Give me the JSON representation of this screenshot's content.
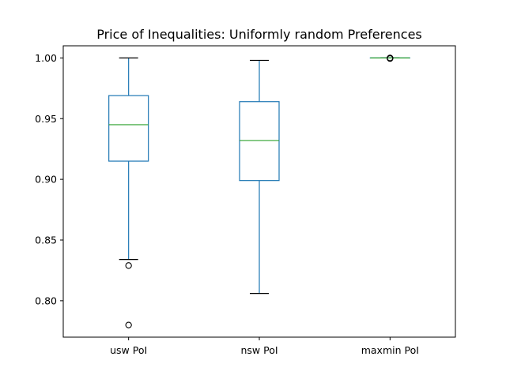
{
  "chart_data": {
    "type": "box",
    "title": "Price of Inequalities: Uniformly random Preferences",
    "xlabel": "",
    "ylabel": "",
    "categories": [
      "usw PoI",
      "nsw PoI",
      "maxmin PoI"
    ],
    "ylim": [
      0.77,
      1.01
    ],
    "yticks": [
      0.8,
      0.85,
      0.9,
      0.95,
      1.0
    ],
    "ytick_labels": [
      "0.80",
      "0.85",
      "0.90",
      "0.95",
      "1.00"
    ],
    "grid": false,
    "boxes": [
      {
        "name": "usw PoI",
        "whisker_low": 0.834,
        "q1": 0.915,
        "median": 0.945,
        "q3": 0.969,
        "whisker_high": 1.0,
        "outliers": [
          0.829,
          0.78
        ]
      },
      {
        "name": "nsw PoI",
        "whisker_low": 0.806,
        "q1": 0.899,
        "median": 0.932,
        "q3": 0.964,
        "whisker_high": 0.998,
        "outliers": []
      },
      {
        "name": "maxmin PoI",
        "whisker_low": 1.0,
        "q1": 1.0,
        "median": 1.0,
        "q3": 1.0,
        "whisker_high": 1.0,
        "outliers": [
          0.9995,
          1.0,
          0.9998
        ]
      }
    ],
    "colors": {
      "box": "#1f77b4",
      "median": "#2ca02c",
      "cap": "#000000",
      "outlier": "#000000",
      "axis": "#000000"
    }
  }
}
